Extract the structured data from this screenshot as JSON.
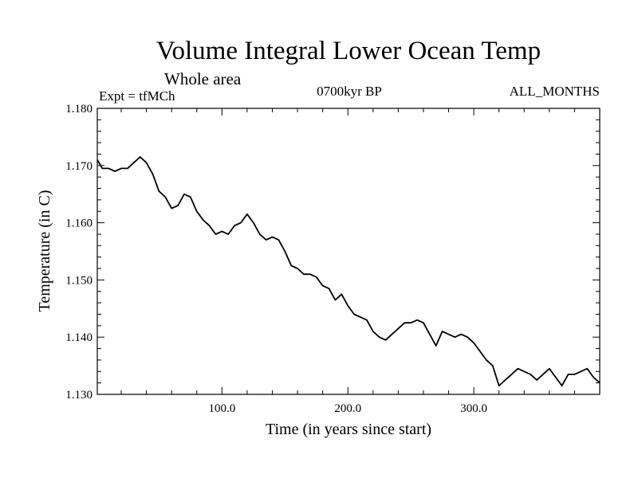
{
  "chart_data": {
    "type": "line",
    "title": "Volume Integral Lower Ocean Temp",
    "subtitle": "Whole area",
    "expt_label": "Expt = tfMCh",
    "period_label": "0700kyr BP",
    "months_label": "ALL_MONTHS",
    "xlabel": "Time (in years since start)",
    "ylabel": "Temperature (in C)",
    "xlim": [
      1,
      400
    ],
    "ylim": [
      1.13,
      1.18
    ],
    "grid": false,
    "x_ticks": [
      100,
      200,
      300
    ],
    "x_tick_labels": [
      "100.0",
      "200.0",
      "300.0"
    ],
    "y_ticks": [
      1.13,
      1.14,
      1.15,
      1.16,
      1.17,
      1.18
    ],
    "y_tick_labels": [
      "1.130",
      "1.140",
      "1.150",
      "1.160",
      "1.170",
      "1.180"
    ],
    "series": [
      {
        "x": [
          1,
          5,
          10,
          15,
          20,
          25,
          30,
          35,
          40,
          45,
          50,
          55,
          60,
          65,
          70,
          75,
          80,
          85,
          90,
          95,
          100,
          105,
          110,
          115,
          120,
          125,
          130,
          135,
          140,
          145,
          150,
          155,
          160,
          165,
          170,
          175,
          180,
          185,
          190,
          195,
          200,
          205,
          210,
          215,
          220,
          225,
          230,
          235,
          240,
          245,
          250,
          255,
          260,
          265,
          270,
          275,
          280,
          285,
          290,
          295,
          300,
          305,
          310,
          315,
          320,
          325,
          330,
          335,
          340,
          345,
          350,
          355,
          360,
          365,
          370,
          375,
          380,
          385,
          390,
          395,
          400
        ],
        "values": [
          1.171,
          1.1695,
          1.1695,
          1.169,
          1.1695,
          1.1695,
          1.1705,
          1.1715,
          1.1705,
          1.1685,
          1.1655,
          1.1645,
          1.1625,
          1.163,
          1.165,
          1.1645,
          1.162,
          1.1605,
          1.1595,
          1.158,
          1.1585,
          1.158,
          1.1595,
          1.16,
          1.1615,
          1.16,
          1.158,
          1.157,
          1.1575,
          1.157,
          1.155,
          1.1525,
          1.152,
          1.151,
          1.151,
          1.1505,
          1.149,
          1.1485,
          1.1465,
          1.1475,
          1.1455,
          1.144,
          1.1435,
          1.143,
          1.141,
          1.14,
          1.1395,
          1.1405,
          1.1415,
          1.1425,
          1.1425,
          1.143,
          1.1425,
          1.1405,
          1.1385,
          1.141,
          1.1405,
          1.14,
          1.1405,
          1.14,
          1.139,
          1.1375,
          1.136,
          1.135,
          1.1315,
          1.1325,
          1.1335,
          1.1345,
          1.134,
          1.1335,
          1.1325,
          1.1335,
          1.1345,
          1.133,
          1.1315,
          1.1335,
          1.1335,
          1.134,
          1.1345,
          1.133,
          1.132
        ]
      }
    ]
  }
}
